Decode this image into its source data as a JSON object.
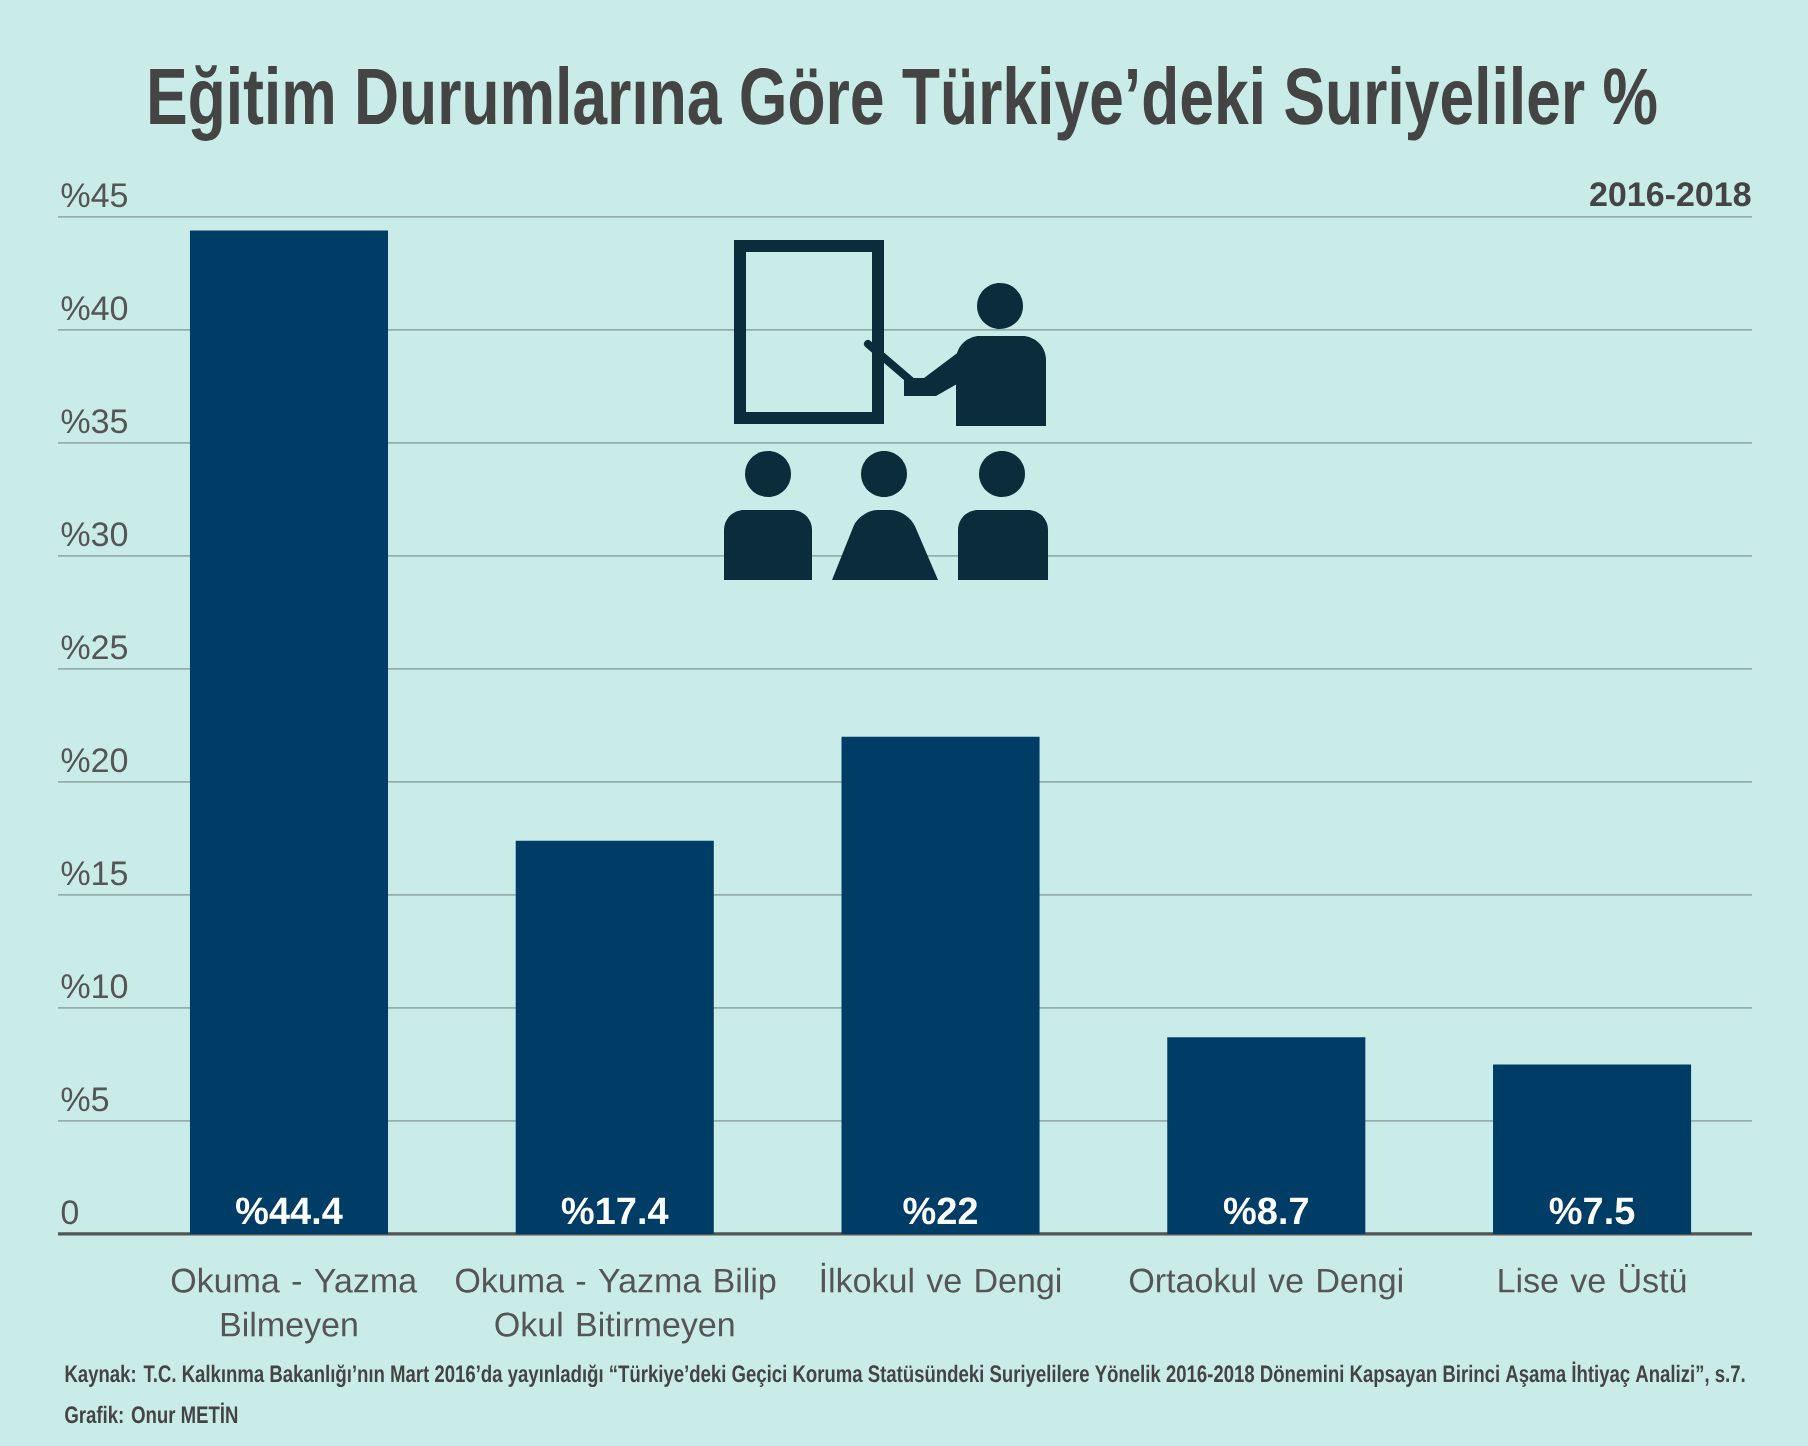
{
  "chart_data": {
    "type": "bar",
    "title": "Eğitim Durumlarına Göre Türkiye’deki Suriyeliler %",
    "subtitle": "2016-2018",
    "categories": [
      "Okuma - Yazma Bilmeyen",
      "Okuma - Yazma Bilip Okul Bitirmeyen",
      "İlkokul ve Dengi",
      "Ortaokul ve Dengi",
      "Lise ve Üstü"
    ],
    "values": [
      44.4,
      17.4,
      22,
      8.7,
      7.5
    ],
    "value_labels": [
      "%44.4",
      "%17.4",
      "%22",
      "%8.7",
      "%7.5"
    ],
    "color": "#003d66",
    "ylim": [
      0,
      45
    ],
    "yticks": [
      0,
      {
        "value": 5,
        "label": "%5"
      },
      {
        "value": 10,
        "label": "%10"
      },
      {
        "value": 15,
        "label": "%15"
      },
      {
        "value": 20,
        "label": "%20"
      },
      {
        "value": 25,
        "label": "%25"
      },
      {
        "value": 30,
        "label": "%30"
      },
      {
        "value": 35,
        "label": "%35"
      },
      {
        "value": 40,
        "label": "%40"
      },
      {
        "value": 45,
        "label": "%45"
      }
    ],
    "grid": "y",
    "annotations": [
      "Kaynak: T.C. Kalkınma Bakanlığı’nın Mart 2016’da yayınladığı “Türkiye’deki Geçici Koruma Statüsündeki Suriyelilere Yönelik 2016-2018 Dönemini Kapsayan Birinci Aşama İhtiyaç Analizi”, s.7.",
      "Grafik: Onur METİN"
    ]
  }
}
